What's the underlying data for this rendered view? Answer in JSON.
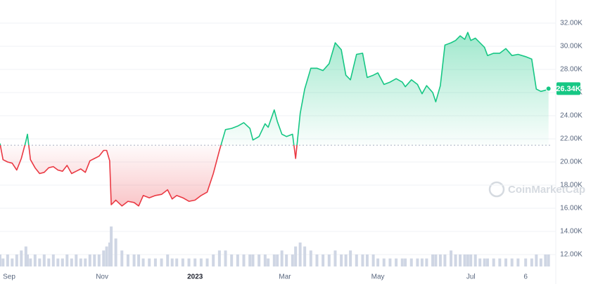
{
  "chart_data": {
    "type": "line",
    "watermark": "CoinMarketCap",
    "current_value_label": "26.34K",
    "baseline": 21.45,
    "up_color": "#16c784",
    "down_color": "#ea3943",
    "volume_color": "#cfd6e4",
    "grid": true,
    "x": [
      0,
      2,
      5,
      8,
      11,
      14,
      17,
      18,
      20,
      23,
      26,
      29,
      32,
      35,
      38,
      41,
      44,
      47,
      50,
      53,
      56,
      59,
      62,
      65,
      68,
      70,
      72,
      73,
      76,
      80,
      84,
      88,
      91,
      94,
      98,
      102,
      106,
      110,
      113,
      116,
      120,
      124,
      128,
      132,
      136,
      140,
      144,
      148,
      152,
      156,
      160,
      164,
      166,
      170,
      174,
      176,
      180,
      182,
      185,
      188,
      192,
      194,
      197,
      200,
      204,
      208,
      212,
      216,
      220,
      224,
      227,
      230,
      234,
      238,
      241,
      245,
      248,
      252,
      256,
      260,
      264,
      266,
      270,
      274,
      277,
      280,
      284,
      286,
      289,
      292,
      296,
      299,
      302,
      305,
      307,
      309,
      312,
      315,
      318,
      320,
      324,
      328,
      332,
      336,
      340,
      345,
      349,
      352,
      355,
      358,
      360
    ],
    "series": [
      {
        "name": "Price",
        "values": [
          21.6,
          20.2,
          20.0,
          19.9,
          19.3,
          20.3,
          21.8,
          22.4,
          20.2,
          19.5,
          19.0,
          19.1,
          19.5,
          19.6,
          19.3,
          19.2,
          19.7,
          19.0,
          19.2,
          19.4,
          19.1,
          20.1,
          20.3,
          20.5,
          21.0,
          21.0,
          20.1,
          16.3,
          16.7,
          16.2,
          16.6,
          16.5,
          16.2,
          17.1,
          16.9,
          17.1,
          17.2,
          17.6,
          16.8,
          17.1,
          16.9,
          16.6,
          16.7,
          17.1,
          17.4,
          19.0,
          21.0,
          22.8,
          22.9,
          23.1,
          23.4,
          22.9,
          21.9,
          22.2,
          23.3,
          23.0,
          24.5,
          23.5,
          22.4,
          22.2,
          22.4,
          20.3,
          24.2,
          26.3,
          28.1,
          28.1,
          27.9,
          28.5,
          30.3,
          29.7,
          27.5,
          27.1,
          29.3,
          29.4,
          27.3,
          27.5,
          27.7,
          26.7,
          26.9,
          27.2,
          26.9,
          26.5,
          27.1,
          26.7,
          25.9,
          26.6,
          26.0,
          25.2,
          26.6,
          30.1,
          30.3,
          30.5,
          30.9,
          30.6,
          31.2,
          30.5,
          30.7,
          30.3,
          29.9,
          29.2,
          29.4,
          29.4,
          29.8,
          29.2,
          29.3,
          29.1,
          28.9,
          26.3,
          26.1,
          26.2,
          26.34
        ]
      },
      {
        "name": "Volume",
        "values": [
          3,
          2,
          3,
          2,
          3,
          4,
          5,
          3,
          2,
          3,
          2,
          3,
          2,
          3,
          2,
          2,
          3,
          2,
          3,
          2,
          2,
          3,
          3,
          3,
          4,
          5,
          6,
          10,
          7,
          4,
          3,
          3,
          3,
          2,
          2,
          2,
          2,
          3,
          2,
          2,
          2,
          2,
          2,
          2,
          2,
          3,
          4,
          4,
          3,
          3,
          3,
          3,
          3,
          3,
          3,
          2,
          3,
          3,
          4,
          3,
          3,
          5,
          6,
          5,
          4,
          3,
          3,
          3,
          4,
          3,
          3,
          4,
          3,
          3,
          3,
          3,
          2,
          2,
          2,
          2,
          2,
          2,
          2,
          2,
          2,
          2,
          3,
          3,
          3,
          3,
          4,
          3,
          3,
          3,
          3,
          3,
          3,
          2,
          2,
          2,
          2,
          2,
          2,
          2,
          2,
          2,
          2,
          3,
          2,
          3,
          3
        ]
      }
    ],
    "xlim": [
      0,
      362
    ],
    "xticks": [
      {
        "value": 6,
        "label": "Sep"
      },
      {
        "value": 67,
        "label": "Nov"
      },
      {
        "value": 128,
        "label": "2023"
      },
      {
        "value": 187,
        "label": "Mar"
      },
      {
        "value": 248,
        "label": "May"
      },
      {
        "value": 309,
        "label": "Jul"
      },
      {
        "value": 345,
        "label": "6"
      }
    ],
    "ylim": [
      11.2,
      33.8
    ],
    "yticks": [
      {
        "value": 12,
        "label": "12.00K"
      },
      {
        "value": 14,
        "label": "14.00K"
      },
      {
        "value": 16,
        "label": "16.00K"
      },
      {
        "value": 18,
        "label": "18.00K"
      },
      {
        "value": 20,
        "label": "20.00K"
      },
      {
        "value": 22,
        "label": "22.00K"
      },
      {
        "value": 24,
        "label": "24.00K"
      },
      {
        "value": 26,
        "label": "26.00K"
      },
      {
        "value": 28,
        "label": "28.00K"
      },
      {
        "value": 30,
        "label": "30.00K"
      },
      {
        "value": 32,
        "label": "32.00K"
      }
    ]
  }
}
